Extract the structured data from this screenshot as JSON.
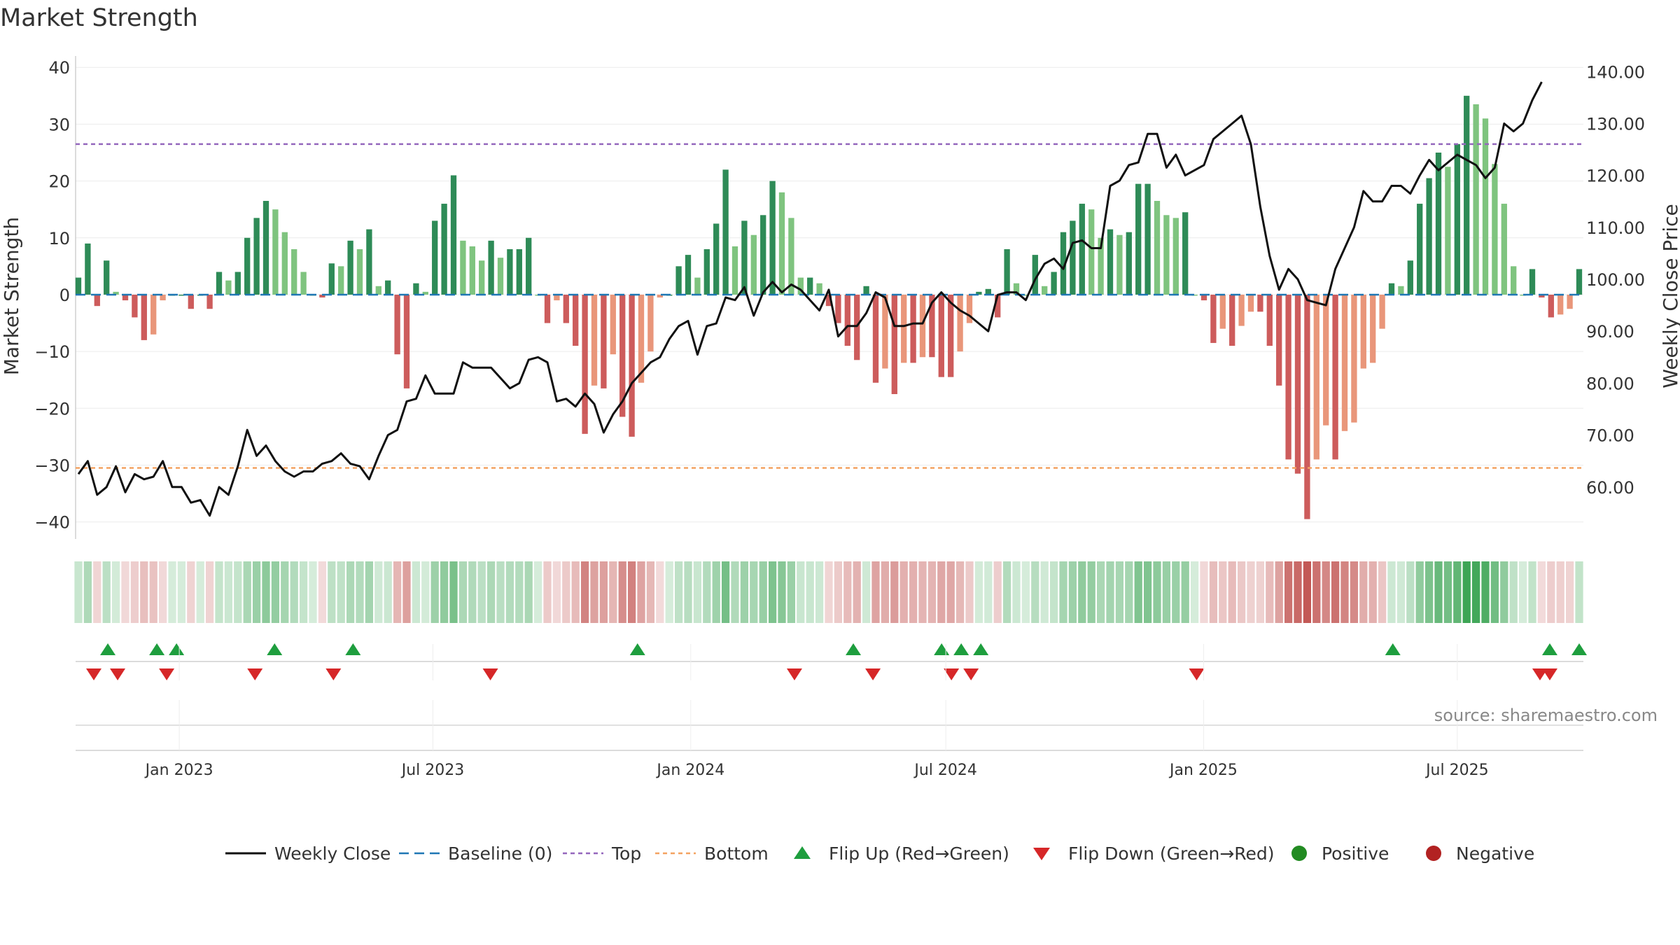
{
  "title": "Market Strength",
  "source_label": "source: sharemaestro.com",
  "colors": {
    "line": "#111111",
    "baseline": "#1f77b4",
    "top": "#9467bd",
    "bottom": "#f4a261",
    "strong_pos": "#2e8b57",
    "weak_pos": "#7fc47f",
    "strong_neg": "#cd5c5c",
    "weak_neg": "#e9967a",
    "flip_up": "#1e9e3e",
    "flip_down": "#d62728",
    "positive": "#228b22",
    "negative": "#b22222"
  },
  "chart_data": {
    "type": "bar",
    "title": "Market Strength",
    "ylabel_left": "Market Strength",
    "ylabel_right": "Weekly Close Price",
    "ylim_left": [
      -43,
      42
    ],
    "ylim_right": [
      50,
      143
    ],
    "yticks_left": [
      "40",
      "30",
      "20",
      "10",
      "0",
      "−10",
      "−20",
      "−30",
      "−40"
    ],
    "yticks_right": [
      "140.00",
      "130.00",
      "120.00",
      "110.00",
      "100.00",
      "90.00",
      "80.00",
      "70.00",
      "60.00"
    ],
    "x_start": "2022-10-21",
    "x_end": "2025-09-26",
    "xticks": [
      {
        "date": "2023-01-01",
        "label": "Jan 2023"
      },
      {
        "date": "2023-07-01",
        "label": "Jul 2023"
      },
      {
        "date": "2024-01-01",
        "label": "Jan 2024"
      },
      {
        "date": "2024-07-01",
        "label": "Jul 2024"
      },
      {
        "date": "2025-01-01",
        "label": "Jan 2025"
      },
      {
        "date": "2025-07-01",
        "label": "Jul 2025"
      }
    ],
    "top_threshold": 26.5,
    "bottom_threshold": -30.5,
    "baseline": 0,
    "strength": [
      3,
      9,
      -2,
      6,
      0.5,
      -1,
      -4,
      -8,
      -7,
      -1,
      0,
      0,
      -2.5,
      0,
      -2.5,
      4,
      2.5,
      4,
      10,
      13.5,
      16.5,
      15,
      11,
      8,
      4,
      0,
      -0.5,
      5.5,
      5,
      9.5,
      8,
      11.5,
      1.5,
      2.5,
      -10.5,
      -16.5,
      2,
      0.5,
      13,
      16,
      21,
      9.5,
      8.5,
      6,
      9.5,
      6.5,
      8,
      8,
      10,
      0,
      -5,
      -1,
      -5,
      -9,
      -24.5,
      -16,
      -16.5,
      -10.5,
      -21.5,
      -25,
      -15.5,
      -10,
      -0.5,
      0,
      5,
      7,
      3,
      8,
      12.5,
      22,
      8.5,
      13,
      10.5,
      14,
      20,
      18,
      13.5,
      3,
      3,
      2,
      -2,
      -5,
      -9,
      -11.5,
      1.5,
      -15.5,
      -13,
      -17.5,
      -12,
      -12,
      -11,
      -11,
      -14.5,
      -14.5,
      -10,
      -5,
      0.5,
      1,
      -4,
      8,
      2,
      0,
      7,
      1.5,
      4,
      11,
      13,
      16,
      15,
      10,
      11.5,
      10.5,
      11,
      19.5,
      19.5,
      16.5,
      14,
      13.5,
      14.5,
      0,
      -1,
      -8.5,
      -6,
      -9,
      -5.5,
      -3,
      -3,
      -9,
      -16,
      -29,
      -31.5,
      -39.5,
      -29,
      -23,
      -29,
      -24,
      -22.5,
      -13,
      -12,
      -6,
      2,
      1.5,
      6,
      16,
      20.5,
      25,
      22.5,
      26.5,
      35,
      33.5,
      31,
      23,
      16,
      5,
      0,
      4.5,
      -0.5,
      -4,
      -3.5,
      -2.5,
      4.5
    ],
    "close": [
      62.5,
      65,
      58.5,
      60,
      64,
      59,
      62.5,
      61.5,
      62,
      65,
      60,
      60,
      57,
      57.5,
      54.5,
      60,
      58.5,
      64,
      71,
      66,
      68,
      65,
      63,
      62,
      63,
      63,
      64.5,
      65,
      66.5,
      64.5,
      64,
      61.5,
      66,
      70,
      71,
      76.5,
      77,
      81.5,
      78,
      78,
      78,
      84,
      83,
      83,
      83,
      81,
      79,
      80,
      84.5,
      85,
      84,
      76.5,
      77,
      75.5,
      78,
      76,
      70.5,
      74,
      76.5,
      80,
      82,
      84,
      85,
      88.5,
      91,
      92,
      85.5,
      91,
      91.5,
      96.5,
      96,
      98.5,
      93,
      97.5,
      99.5,
      97.5,
      99,
      98,
      96,
      94,
      98,
      89,
      91,
      91,
      93.5,
      97.5,
      96.5,
      91,
      91,
      91.5,
      91.5,
      95.5,
      97.5,
      95.5,
      94,
      93,
      91.5,
      90,
      97,
      97.5,
      97.5,
      96,
      100,
      103,
      104,
      102,
      107,
      107.5,
      106,
      106,
      118,
      119,
      122,
      122.5,
      128,
      128,
      121.5,
      124,
      120,
      121,
      122,
      127,
      128.5,
      130,
      131.5,
      126,
      114,
      104.5,
      98,
      102,
      100,
      96,
      95.5,
      95,
      102,
      106,
      110,
      117,
      115,
      115,
      118,
      118,
      116.5,
      120,
      123,
      121,
      122.5,
      124,
      123,
      122,
      119.5,
      121.5,
      130,
      128.5,
      130,
      134.5,
      138
    ],
    "flip_up_dates": [
      "2022-11-11",
      "2022-12-16",
      "2022-12-30",
      "2023-03-10",
      "2023-05-05",
      "2023-11-24",
      "2024-04-26",
      "2024-06-28",
      "2024-07-12",
      "2024-07-26",
      "2025-05-16",
      "2025-09-05",
      "2025-09-26"
    ],
    "flip_down_dates": [
      "2022-11-01",
      "2022-11-18",
      "2022-12-23",
      "2023-02-24",
      "2023-04-21",
      "2023-08-11",
      "2024-03-15",
      "2024-05-10",
      "2024-07-05",
      "2024-07-19",
      "2024-12-27",
      "2025-08-29",
      "2025-09-05"
    ],
    "legend": [
      {
        "key": "line",
        "label": "Weekly Close"
      },
      {
        "key": "baseline",
        "label": "Baseline (0)"
      },
      {
        "key": "top",
        "label": "Top"
      },
      {
        "key": "bottom",
        "label": "Bottom"
      },
      {
        "key": "flip_up",
        "label": "Flip Up (Red→Green)"
      },
      {
        "key": "flip_down",
        "label": "Flip Down (Green→Red)"
      },
      {
        "key": "positive",
        "label": "Positive"
      },
      {
        "key": "negative",
        "label": "Negative"
      }
    ],
    "legend_position": "bottom"
  }
}
